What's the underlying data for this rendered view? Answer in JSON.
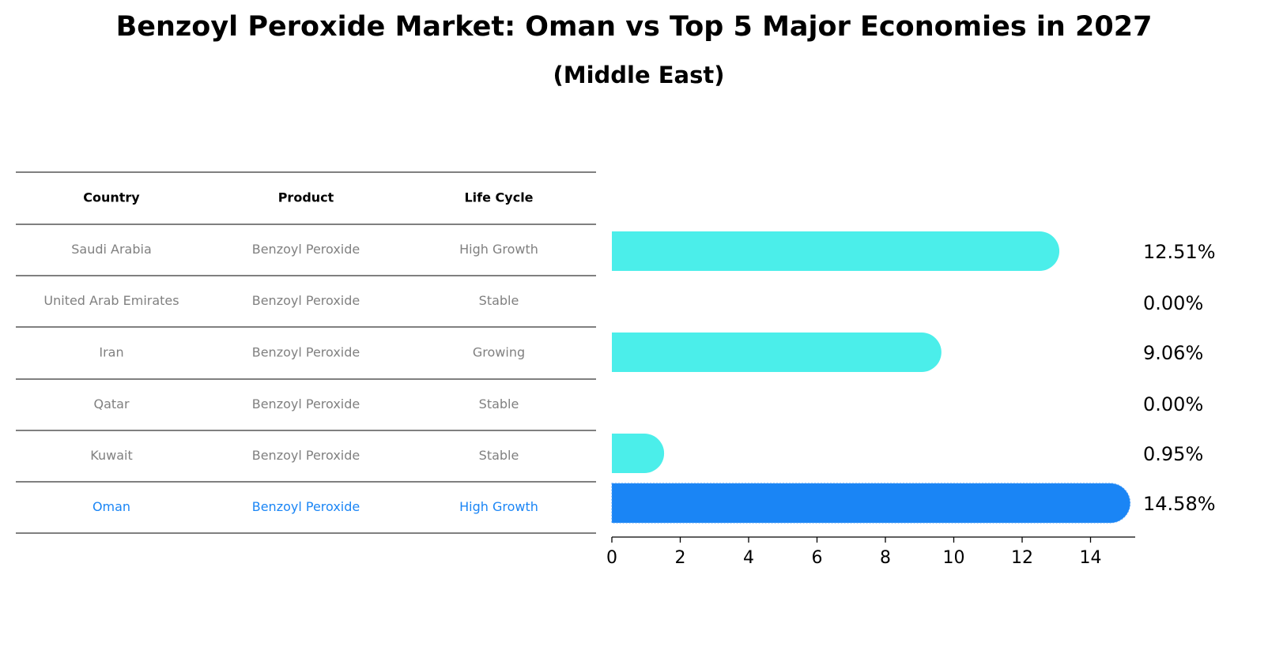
{
  "chart_data": {
    "type": "bar",
    "title": "Benzoyl Peroxide Market: Oman vs Top 5 Major Economies in 2027",
    "subtitle": "(Middle East)",
    "table": {
      "columns": [
        "Country",
        "Product",
        "Life Cycle"
      ],
      "rows": [
        [
          "Saudi Arabia",
          "Benzoyl Peroxide",
          "High Growth"
        ],
        [
          "United Arab Emirates",
          "Benzoyl Peroxide",
          "Stable"
        ],
        [
          "Iran",
          "Benzoyl Peroxide",
          "Growing"
        ],
        [
          "Qatar",
          "Benzoyl Peroxide",
          "Stable"
        ],
        [
          "Kuwait",
          "Benzoyl Peroxide",
          "Stable"
        ],
        [
          "Oman",
          "Benzoyl Peroxide",
          "High Growth"
        ]
      ],
      "highlight_row": 5
    },
    "categories": [
      "Saudi Arabia",
      "United Arab Emirates",
      "Iran",
      "Qatar",
      "Kuwait",
      "Oman"
    ],
    "values": [
      12.51,
      0.0,
      9.06,
      0.0,
      0.95,
      14.58
    ],
    "value_labels": [
      "12.51%",
      "0.00%",
      "9.06%",
      "0.00%",
      "0.95%",
      "14.58%"
    ],
    "orientation": "horizontal",
    "xlim": [
      0,
      15.3
    ],
    "xticks": [
      0,
      2,
      4,
      6,
      8,
      10,
      12,
      14
    ],
    "xlabel": "",
    "ylabel": "",
    "grid": false,
    "colors": {
      "bar": "#4beeea",
      "highlight_bar": "#1a85f5",
      "table_text": "#808080",
      "highlight_text": "#1a85f5",
      "header_text": "#000000"
    }
  }
}
